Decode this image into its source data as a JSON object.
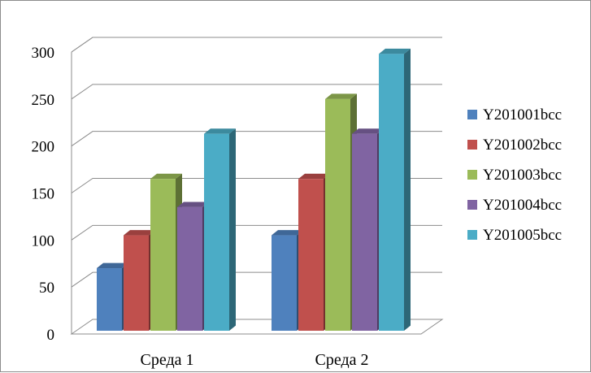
{
  "chart_data": {
    "type": "bar",
    "categories": [
      "Среда 1",
      "Среда 2"
    ],
    "series": [
      {
        "name": "Y201001bcc",
        "values": [
          70,
          105
        ],
        "color": "#4f81bd"
      },
      {
        "name": "Y201002bcc",
        "values": [
          105,
          165
        ],
        "color": "#c0504d"
      },
      {
        "name": "Y201003bcc",
        "values": [
          165,
          250
        ],
        "color": "#9bbb59"
      },
      {
        "name": "Y201004bcc",
        "values": [
          135,
          213
        ],
        "color": "#8064a2"
      },
      {
        "name": "Y201005bcc",
        "values": [
          213,
          298
        ],
        "color": "#4bacc6"
      }
    ],
    "y_ticks": [
      "0",
      "50",
      "100",
      "150",
      "200",
      "250",
      "300"
    ],
    "ylim": [
      0,
      300
    ],
    "grid": true,
    "legend_position": "right",
    "style": "3d-clustered-column"
  }
}
